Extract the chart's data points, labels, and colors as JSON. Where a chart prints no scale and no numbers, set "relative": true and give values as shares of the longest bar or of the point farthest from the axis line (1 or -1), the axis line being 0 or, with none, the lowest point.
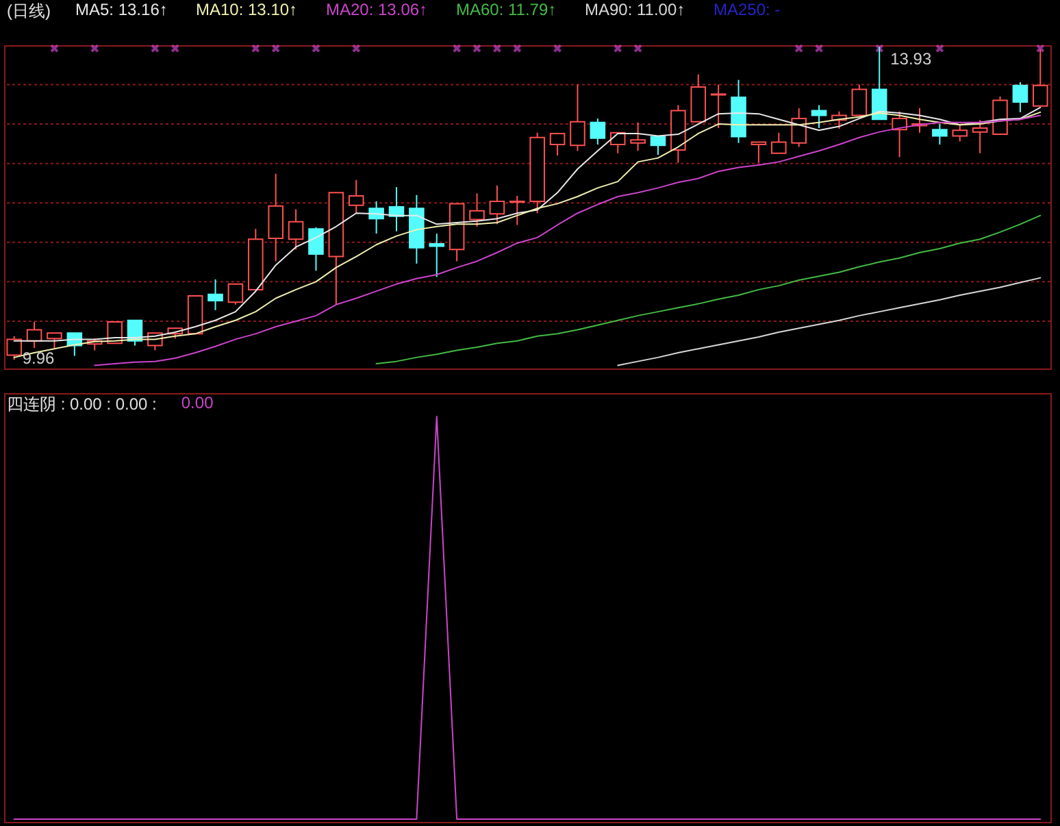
{
  "chart_data": [
    {
      "type": "candlestick",
      "title": "(日线)",
      "categories": [
        null,
        null,
        null,
        null,
        null,
        null,
        null,
        null,
        null,
        null,
        null,
        null,
        null,
        null,
        null,
        null,
        null,
        null,
        null,
        null,
        null,
        null,
        null,
        null,
        null,
        null,
        null,
        null,
        null,
        null,
        null,
        null,
        null,
        null,
        null,
        null,
        null,
        null,
        null,
        null,
        null,
        null,
        null,
        null,
        null,
        null,
        null,
        null,
        null,
        null,
        null,
        null
      ],
      "ohlc": [
        [
          10.02,
          10.26,
          9.96,
          10.22
        ],
        [
          10.2,
          10.44,
          10.11,
          10.34
        ],
        [
          10.23,
          10.3,
          10.11,
          10.3
        ],
        [
          10.3,
          10.3,
          10.01,
          10.14
        ],
        [
          10.16,
          10.23,
          10.08,
          10.2
        ],
        [
          10.17,
          10.44,
          10.17,
          10.44
        ],
        [
          10.46,
          10.46,
          10.14,
          10.2
        ],
        [
          10.14,
          10.3,
          10.08,
          10.3
        ],
        [
          10.29,
          10.36,
          10.23,
          10.36
        ],
        [
          10.29,
          10.77,
          10.29,
          10.77
        ],
        [
          10.79,
          10.98,
          10.59,
          10.71
        ],
        [
          10.69,
          10.92,
          10.66,
          10.92
        ],
        [
          10.85,
          11.62,
          10.85,
          11.49
        ],
        [
          11.5,
          12.32,
          11.21,
          11.91
        ],
        [
          11.49,
          11.87,
          11.36,
          11.71
        ],
        [
          11.62,
          11.64,
          11.09,
          11.3
        ],
        [
          11.27,
          12.08,
          10.66,
          12.08
        ],
        [
          11.92,
          12.24,
          11.82,
          12.04
        ],
        [
          11.88,
          11.97,
          11.56,
          11.75
        ],
        [
          11.9,
          12.15,
          11.59,
          11.78
        ],
        [
          11.88,
          12.05,
          11.18,
          11.38
        ],
        [
          11.43,
          11.56,
          11.01,
          11.4
        ],
        [
          11.36,
          11.94,
          11.21,
          11.94
        ],
        [
          11.74,
          12.07,
          11.65,
          11.85
        ],
        [
          11.81,
          12.17,
          11.68,
          11.97
        ],
        [
          11.96,
          12.04,
          11.67,
          11.97
        ],
        [
          11.97,
          12.84,
          11.82,
          12.78
        ],
        [
          12.69,
          12.84,
          12.55,
          12.83
        ],
        [
          12.68,
          13.45,
          12.61,
          12.98
        ],
        [
          12.97,
          13.02,
          12.69,
          12.77
        ],
        [
          12.69,
          12.84,
          12.58,
          12.84
        ],
        [
          12.71,
          12.97,
          12.61,
          12.75
        ],
        [
          12.79,
          12.79,
          12.56,
          12.68
        ],
        [
          12.62,
          13.19,
          12.46,
          13.12
        ],
        [
          12.98,
          13.58,
          12.98,
          13.42
        ],
        [
          13.32,
          13.45,
          12.9,
          13.33
        ],
        [
          13.29,
          13.51,
          12.71,
          12.79
        ],
        [
          12.69,
          12.72,
          12.46,
          12.72
        ],
        [
          12.58,
          12.84,
          12.58,
          12.72
        ],
        [
          12.71,
          13.15,
          12.66,
          13.02
        ],
        [
          13.12,
          13.19,
          12.9,
          13.06
        ],
        [
          13.0,
          13.11,
          12.89,
          13.06
        ],
        [
          13.06,
          13.45,
          13.06,
          13.39
        ],
        [
          13.39,
          13.93,
          13.01,
          13.01
        ],
        [
          12.88,
          13.11,
          12.53,
          13.02
        ],
        [
          12.93,
          13.15,
          12.84,
          12.95
        ],
        [
          12.88,
          12.95,
          12.69,
          12.8
        ],
        [
          12.8,
          12.95,
          12.73,
          12.87
        ],
        [
          12.85,
          13.0,
          12.58,
          12.9
        ],
        [
          12.82,
          13.3,
          12.82,
          13.25
        ],
        [
          13.44,
          13.48,
          13.1,
          13.23
        ],
        [
          13.18,
          13.9,
          13.18,
          13.44
        ]
      ],
      "series": [
        {
          "type": "line",
          "name": "MA5: 13.16↑",
          "color": "#e8e8e8",
          "values": [
            10.2,
            10.2,
            10.2,
            10.22,
            10.22,
            10.24,
            10.24,
            10.26,
            10.31,
            10.38,
            10.46,
            10.57,
            10.83,
            11.16,
            11.39,
            11.51,
            11.65,
            11.82,
            11.81,
            11.79,
            11.79,
            11.68,
            11.7,
            11.72,
            11.75,
            11.82,
            11.86,
            12.08,
            12.38,
            12.61,
            12.83,
            12.83,
            12.8,
            12.82,
            12.95,
            13.08,
            13.09,
            13.08,
            13.01,
            12.94,
            12.87,
            12.92,
            13.02,
            13.11,
            13.09,
            13.06,
            13.01,
            12.94,
            12.97,
            13.01,
            13.02,
            13.16
          ]
        },
        {
          "type": "line",
          "name": "MA10: 13.10↑",
          "color": "#f0f0b0",
          "values": [
            9.99,
            10.05,
            10.1,
            10.15,
            10.19,
            10.2,
            10.22,
            10.22,
            10.26,
            10.29,
            10.38,
            10.46,
            10.57,
            10.74,
            10.85,
            10.95,
            11.13,
            11.27,
            11.42,
            11.53,
            11.61,
            11.65,
            11.68,
            11.68,
            11.7,
            11.79,
            11.88,
            11.94,
            12.03,
            12.14,
            12.22,
            12.47,
            12.52,
            12.66,
            12.83,
            12.95,
            12.94,
            12.94,
            12.94,
            12.94,
            12.97,
            13.01,
            13.04,
            13.09,
            13.06,
            13.01,
            12.97,
            12.94,
            12.95,
            12.99,
            13.01,
            13.1
          ]
        },
        {
          "type": "line",
          "name": "MA20: 13.06↑",
          "color": "#cc44cc",
          "values": [
            null,
            null,
            null,
            null,
            9.89,
            9.91,
            9.93,
            9.94,
            9.98,
            10.05,
            10.13,
            10.22,
            10.29,
            10.38,
            10.45,
            10.52,
            10.66,
            10.74,
            10.83,
            10.92,
            10.99,
            11.04,
            11.13,
            11.21,
            11.32,
            11.44,
            11.51,
            11.67,
            11.82,
            11.93,
            12.03,
            12.08,
            12.14,
            12.21,
            12.26,
            12.35,
            12.4,
            12.43,
            12.47,
            12.54,
            12.61,
            12.69,
            12.78,
            12.85,
            12.9,
            12.94,
            12.97,
            12.97,
            12.97,
            12.99,
            13.01,
            13.06
          ]
        },
        {
          "type": "line",
          "name": "MA60: 11.79↑",
          "color": "#44bb44",
          "values": [
            null,
            null,
            null,
            null,
            null,
            null,
            null,
            null,
            null,
            null,
            null,
            null,
            null,
            null,
            null,
            null,
            null,
            null,
            9.91,
            9.94,
            9.99,
            10.03,
            10.08,
            10.12,
            10.17,
            10.2,
            10.26,
            10.29,
            10.34,
            10.4,
            10.46,
            10.52,
            10.57,
            10.62,
            10.67,
            10.73,
            10.78,
            10.85,
            10.9,
            10.97,
            11.02,
            11.07,
            11.14,
            11.2,
            11.25,
            11.32,
            11.37,
            11.44,
            11.49,
            11.58,
            11.68,
            11.79
          ]
        },
        {
          "type": "line",
          "name": "MA90: 11.00↑",
          "color": "#d8d8d8",
          "values": [
            null,
            null,
            null,
            null,
            null,
            null,
            null,
            null,
            null,
            null,
            null,
            null,
            null,
            null,
            null,
            null,
            null,
            null,
            null,
            null,
            null,
            null,
            null,
            null,
            null,
            null,
            null,
            null,
            null,
            null,
            9.89,
            9.94,
            9.99,
            10.05,
            10.1,
            10.15,
            10.2,
            10.25,
            10.31,
            10.36,
            10.41,
            10.46,
            10.52,
            10.57,
            10.62,
            10.67,
            10.72,
            10.78,
            10.83,
            10.88,
            10.94,
            11.0
          ]
        },
        {
          "type": "line",
          "name": "MA250: -",
          "color": "#2424c8",
          "values": [
            null,
            null,
            null,
            null,
            null,
            null,
            null,
            null,
            null,
            null,
            null,
            null,
            null,
            null,
            null,
            null,
            null,
            null,
            null,
            null,
            null,
            null,
            null,
            null,
            null,
            null,
            null,
            null,
            null,
            null,
            null,
            null,
            null,
            null,
            null,
            null,
            null,
            null,
            null,
            null,
            null,
            null,
            null,
            null,
            null,
            null,
            null,
            null,
            null,
            null,
            null,
            null
          ]
        },
        {
          "type": "scatter",
          "marker": "cross",
          "color": "#cc44cc",
          "values": [
            null,
            null,
            13.91,
            null,
            13.91,
            null,
            null,
            13.91,
            13.91,
            null,
            null,
            null,
            13.91,
            13.91,
            null,
            13.91,
            null,
            13.91,
            null,
            null,
            null,
            null,
            13.91,
            13.91,
            13.91,
            13.91,
            null,
            13.91,
            null,
            null,
            13.91,
            13.91,
            null,
            null,
            null,
            null,
            null,
            null,
            null,
            13.91,
            13.91,
            null,
            null,
            13.91,
            null,
            null,
            13.91,
            null,
            null,
            null,
            null,
            13.91
          ]
        }
      ],
      "ylim": [
        9.85,
        13.95
      ],
      "yticks": [
        {
          "value": 10.45,
          "label": null
        },
        {
          "value": 10.95,
          "label": null
        },
        {
          "value": 11.45,
          "label": null
        },
        {
          "value": 11.95,
          "label": null
        },
        {
          "value": 12.45,
          "label": null
        },
        {
          "value": 12.95,
          "label": null
        },
        {
          "value": 13.45,
          "label": null
        }
      ],
      "grid": "y",
      "legend": "top left",
      "annotations": [
        "13.93",
        "9.96"
      ]
    },
    {
      "type": "line",
      "title": "四连阴 : 0.00 : 0.00 :",
      "relative": true,
      "categories": [
        null,
        null,
        null,
        null,
        null,
        null,
        null,
        null,
        null,
        null,
        null,
        null,
        null,
        null,
        null,
        null,
        null,
        null,
        null,
        null,
        null,
        null,
        null,
        null,
        null,
        null,
        null,
        null,
        null,
        null,
        null,
        null,
        null,
        null,
        null,
        null,
        null,
        null,
        null,
        null,
        null,
        null,
        null,
        null,
        null,
        null,
        null,
        null,
        null,
        null,
        null,
        null
      ],
      "series": [
        {
          "name": "0.00",
          "color": "#cc44cc",
          "values": [
            0,
            0,
            0,
            0,
            0,
            0,
            0,
            0,
            0,
            0,
            0,
            0,
            0,
            0,
            0,
            0,
            0,
            0,
            0,
            0,
            0,
            1,
            0,
            0,
            0,
            0,
            0,
            0,
            0,
            0,
            0,
            0,
            0,
            0,
            0,
            0,
            0,
            0,
            0,
            0,
            0,
            0,
            0,
            0,
            0,
            0,
            0,
            0,
            0,
            0,
            0,
            0
          ]
        }
      ],
      "legend": "top left"
    }
  ]
}
